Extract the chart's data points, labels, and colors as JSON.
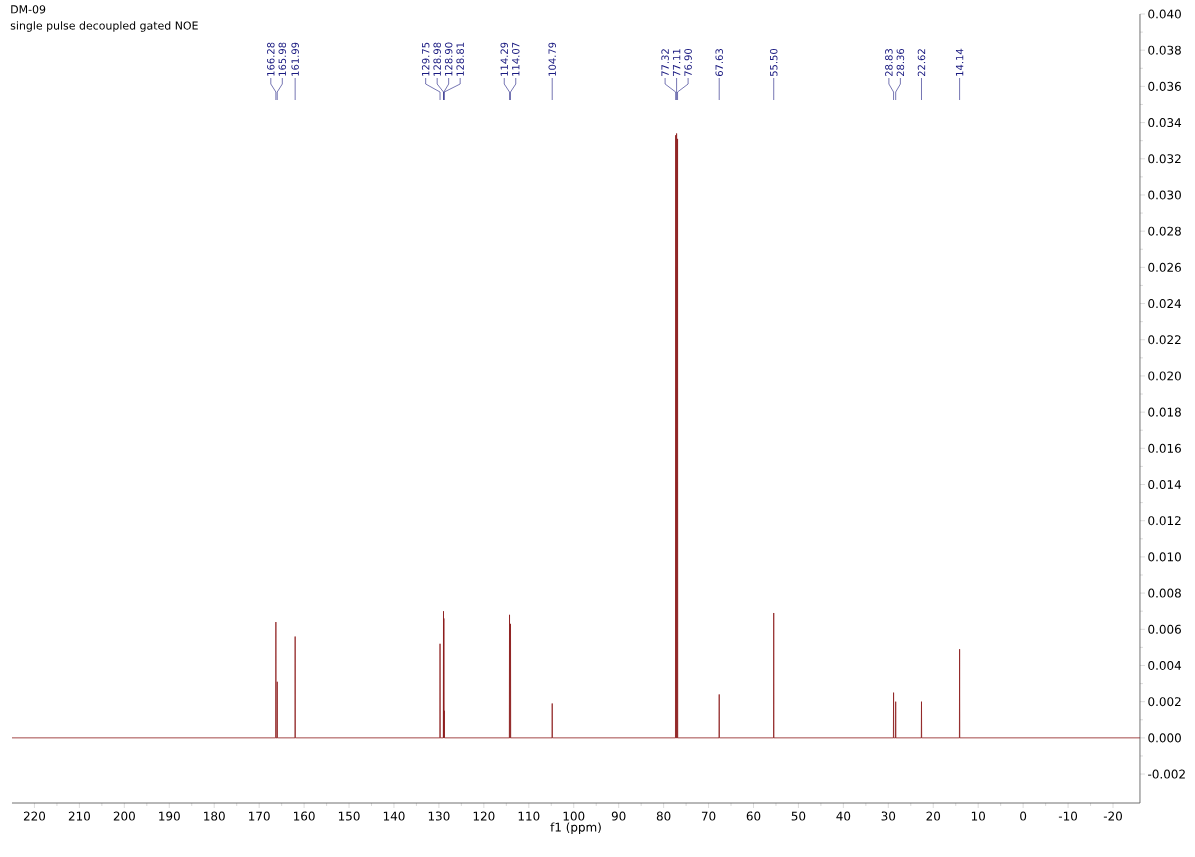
{
  "chart_data": {
    "type": "line",
    "title": "DM-09",
    "subtitle": "single pulse decoupled gated NOE",
    "xlabel": "f1 (ppm)",
    "xlim": [
      225,
      -26
    ],
    "ylim": [
      -0.0036,
      0.04
    ],
    "xticks": [
      220,
      210,
      200,
      190,
      180,
      170,
      160,
      150,
      140,
      130,
      120,
      110,
      100,
      90,
      80,
      70,
      60,
      50,
      40,
      30,
      20,
      10,
      0,
      -10,
      -20
    ],
    "yticks": [
      {
        "value": -0.002,
        "label": "-0.002"
      },
      {
        "value": 0,
        "label": "0.000"
      },
      {
        "value": 0.002,
        "label": "0.002"
      },
      {
        "value": 0.004,
        "label": "0.004"
      },
      {
        "value": 0.006,
        "label": "0.006"
      },
      {
        "value": 0.008,
        "label": "0.008"
      },
      {
        "value": 0.01,
        "label": "0.010"
      },
      {
        "value": 0.012,
        "label": "0.012"
      },
      {
        "value": 0.014,
        "label": "0.014"
      },
      {
        "value": 0.016,
        "label": "0.016"
      },
      {
        "value": 0.018,
        "label": "0.018"
      },
      {
        "value": 0.02,
        "label": "0.020"
      },
      {
        "value": 0.022,
        "label": "0.022"
      },
      {
        "value": 0.024,
        "label": "0.024"
      },
      {
        "value": 0.026,
        "label": "0.026"
      },
      {
        "value": 0.028,
        "label": "0.028"
      },
      {
        "value": 0.03,
        "label": "0.030"
      },
      {
        "value": 0.032,
        "label": "0.032"
      },
      {
        "value": 0.034,
        "label": "0.034"
      },
      {
        "value": 0.036,
        "label": "0.036"
      },
      {
        "value": 0.038,
        "label": "0.038"
      },
      {
        "value": 0.04,
        "label": "0.040"
      }
    ],
    "series": [
      {
        "color": "#8b1a1a",
        "x": [
          225,
          166.32,
          166.28,
          166.24,
          166.02,
          165.98,
          165.94,
          162.03,
          161.99,
          161.95,
          129.79,
          129.75,
          129.71,
          129.02,
          128.98,
          128.94,
          128.9,
          128.86,
          128.81,
          128.77,
          114.33,
          114.29,
          114.25,
          114.11,
          114.07,
          114.03,
          104.83,
          104.79,
          104.75,
          77.36,
          77.32,
          77.28,
          77.15,
          77.11,
          77.07,
          76.94,
          76.9,
          76.86,
          67.67,
          67.63,
          67.59,
          55.54,
          55.5,
          55.46,
          28.87,
          28.83,
          28.79,
          28.4,
          28.36,
          28.32,
          22.66,
          22.62,
          22.58,
          14.18,
          14.14,
          14.1,
          -26
        ],
        "values": [
          0,
          0,
          0.0064,
          0,
          0,
          0.0031,
          0,
          0,
          0.0056,
          0,
          0,
          0.0052,
          0,
          0,
          0.007,
          0,
          0.0066,
          0,
          0.0015,
          0,
          0,
          0.0068,
          0,
          0,
          0.0063,
          0,
          0,
          0.0019,
          0,
          0,
          0.0333,
          0,
          0,
          0.0334,
          0,
          0,
          0.0331,
          0,
          0,
          0.0024,
          0,
          0,
          0.0069,
          0,
          0,
          0.0025,
          0,
          0,
          0.002,
          0,
          0,
          0.002,
          0,
          0,
          0.0049,
          0,
          0
        ]
      }
    ],
    "annotations": [
      {
        "text": "166.28",
        "x": 166.28
      },
      {
        "text": "165.98",
        "x": 165.98
      },
      {
        "text": "161.99",
        "x": 161.99
      },
      {
        "text": "129.75",
        "x": 129.75
      },
      {
        "text": "128.98",
        "x": 128.98
      },
      {
        "text": "128.90",
        "x": 128.9
      },
      {
        "text": "128.81",
        "x": 128.81
      },
      {
        "text": "114.29",
        "x": 114.29
      },
      {
        "text": "114.07",
        "x": 114.07
      },
      {
        "text": "104.79",
        "x": 104.79
      },
      {
        "text": "77.32",
        "x": 77.32
      },
      {
        "text": "77.11",
        "x": 77.11
      },
      {
        "text": "76.90",
        "x": 76.9
      },
      {
        "text": "67.63",
        "x": 67.63
      },
      {
        "text": "55.50",
        "x": 55.5
      },
      {
        "text": "28.83",
        "x": 28.83
      },
      {
        "text": "28.36",
        "x": 28.36
      },
      {
        "text": "22.62",
        "x": 22.62
      },
      {
        "text": "14.14",
        "x": 14.14
      }
    ]
  }
}
